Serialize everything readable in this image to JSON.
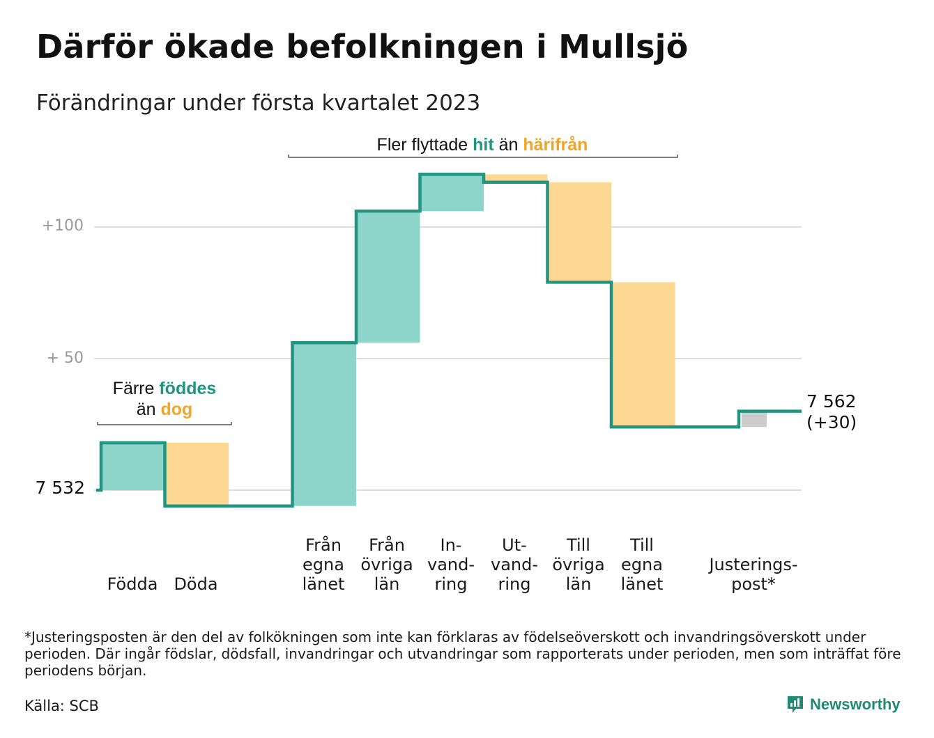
{
  "title": "Därför ökade befolkningen i Mullsjö",
  "subtitle": "Förändringar under första kvartalet 2023",
  "colors": {
    "in": "#8dd5ca",
    "out": "#fcd893",
    "adjust": "#cccccc",
    "line": "#1f9582",
    "hit_text": "#1f9582",
    "away_text": "#f0a524",
    "grid": "#dddddd",
    "ticklabel": "#999999"
  },
  "annotations": {
    "migration": {
      "pre": "Fler flyttade ",
      "hit": "hit",
      "mid": " än ",
      "away": "härifrån"
    },
    "natural": {
      "pre": "Färre ",
      "born": "föddes",
      "line2_pre": "än ",
      "died": "dog"
    }
  },
  "start_label": "7 532",
  "end_label": {
    "value": "7 562",
    "change": "(+30)"
  },
  "categories": [
    {
      "lines": [
        "Födda"
      ]
    },
    {
      "lines": [
        "Döda"
      ]
    },
    {
      "lines": [
        "Från",
        "egna",
        "länet"
      ]
    },
    {
      "lines": [
        "Från",
        "övriga",
        "län"
      ]
    },
    {
      "lines": [
        "In-",
        "vand-",
        "ring"
      ]
    },
    {
      "lines": [
        "Ut-",
        "vand-",
        "ring"
      ]
    },
    {
      "lines": [
        "Till",
        "övriga",
        "län"
      ]
    },
    {
      "lines": [
        "Till",
        "egna",
        "länet"
      ]
    },
    {
      "lines": [
        "Justerings-",
        "post*"
      ]
    }
  ],
  "chart_data": {
    "type": "waterfall",
    "start_value": 7532,
    "end_value": 7562,
    "y_ticks": [
      {
        "value": 100,
        "label": "+100"
      },
      {
        "value": 50,
        "label": "+ 50"
      }
    ],
    "steps": [
      {
        "category": "Födda",
        "change": 18,
        "kind": "in"
      },
      {
        "category": "Döda",
        "change": -24,
        "kind": "out"
      },
      {
        "category": "Från egna länet",
        "change": 62,
        "kind": "in"
      },
      {
        "category": "Från övriga län",
        "change": 50,
        "kind": "in"
      },
      {
        "category": "Invandring",
        "change": 14,
        "kind": "in"
      },
      {
        "category": "Utvandring",
        "change": -3,
        "kind": "out"
      },
      {
        "category": "Till övriga län",
        "change": -38,
        "kind": "out"
      },
      {
        "category": "Till egna länet",
        "change": -55,
        "kind": "out"
      },
      {
        "category": "Justeringspost*",
        "change": 6,
        "kind": "adjust"
      }
    ]
  },
  "footnote": "*Justeringsposten är den del av folkökningen som inte kan förklaras av födelseöverskott och invandringsöverskott under perioden. Där ingår födslar, dödsfall, invandringar och utvandringar som rapporterats under perioden, men som inträffat före periodens början.",
  "source": "Källa: SCB",
  "brand": "Newsworthy"
}
